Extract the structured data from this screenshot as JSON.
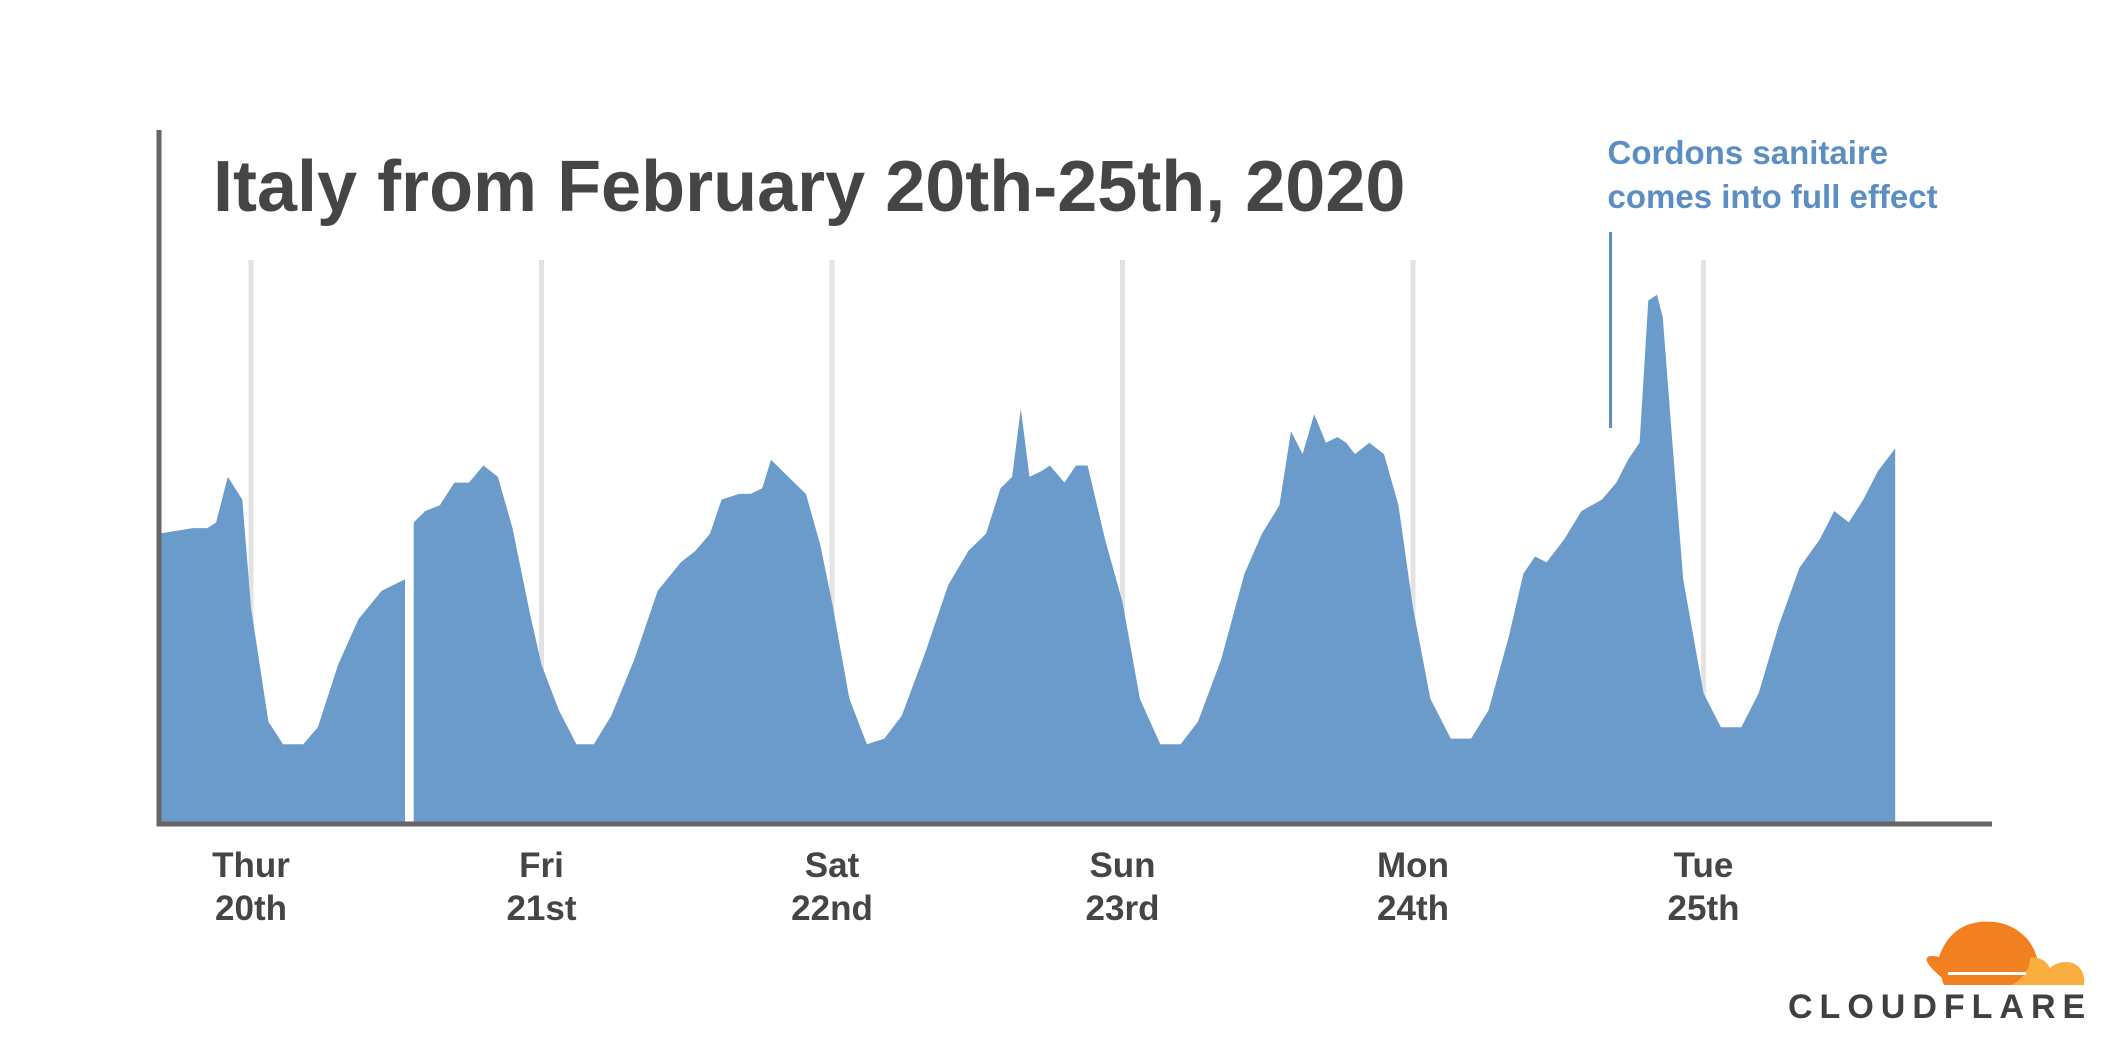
{
  "chart_data": {
    "type": "area",
    "title": "Italy from February 20th-25th, 2020",
    "xlabel": "",
    "ylabel": "",
    "x_start": "Thur 20th",
    "categories": [
      {
        "day": "Thur",
        "date": "20th"
      },
      {
        "day": "Fri",
        "date": "21st"
      },
      {
        "day": "Sat",
        "date": "22nd"
      },
      {
        "day": "Sun",
        "date": "23rd"
      },
      {
        "day": "Mon",
        "date": "24th"
      },
      {
        "day": "Tue",
        "date": "25th"
      }
    ],
    "xlim": [
      -0.32,
      5.66
    ],
    "ylim": [
      0,
      100
    ],
    "grid_vertical": true,
    "annotation": {
      "lines": [
        "Cordons sanitaire",
        "comes into full effect"
      ],
      "x": 4.68,
      "color": "#5b8ec2"
    },
    "series": [
      {
        "color": "#6b9bcb",
        "gap": [
          0.53,
          0.56
        ],
        "points": [
          [
            -0.32,
            51
          ],
          [
            -0.2,
            52
          ],
          [
            -0.15,
            52
          ],
          [
            -0.12,
            53
          ],
          [
            -0.08,
            61
          ],
          [
            -0.03,
            57
          ],
          [
            0.0,
            38
          ],
          [
            0.06,
            18
          ],
          [
            0.11,
            14
          ],
          [
            0.18,
            14
          ],
          [
            0.23,
            17
          ],
          [
            0.3,
            28
          ],
          [
            0.37,
            36
          ],
          [
            0.45,
            41
          ],
          [
            0.53,
            43
          ],
          [
            0.56,
            53
          ],
          [
            0.6,
            55
          ],
          [
            0.65,
            56
          ],
          [
            0.7,
            60
          ],
          [
            0.75,
            60
          ],
          [
            0.8,
            63
          ],
          [
            0.85,
            61
          ],
          [
            0.9,
            52
          ],
          [
            0.96,
            37
          ],
          [
            1.0,
            28
          ],
          [
            1.06,
            20
          ],
          [
            1.12,
            14
          ],
          [
            1.18,
            14
          ],
          [
            1.24,
            19
          ],
          [
            1.32,
            29
          ],
          [
            1.4,
            41
          ],
          [
            1.48,
            46
          ],
          [
            1.53,
            48
          ],
          [
            1.58,
            51
          ],
          [
            1.62,
            57
          ],
          [
            1.68,
            58
          ],
          [
            1.72,
            58
          ],
          [
            1.76,
            59
          ],
          [
            1.79,
            64
          ],
          [
            1.83,
            62
          ],
          [
            1.87,
            60
          ],
          [
            1.91,
            58
          ],
          [
            1.96,
            49
          ],
          [
            2.0,
            39
          ],
          [
            2.06,
            22
          ],
          [
            2.12,
            14
          ],
          [
            2.18,
            15
          ],
          [
            2.24,
            19
          ],
          [
            2.32,
            30
          ],
          [
            2.4,
            42
          ],
          [
            2.47,
            48
          ],
          [
            2.53,
            51
          ],
          [
            2.58,
            59
          ],
          [
            2.62,
            61
          ],
          [
            2.65,
            73
          ],
          [
            2.68,
            61
          ],
          [
            2.72,
            62
          ],
          [
            2.75,
            63
          ],
          [
            2.8,
            60
          ],
          [
            2.84,
            63
          ],
          [
            2.88,
            63
          ],
          [
            2.94,
            50
          ],
          [
            3.0,
            39
          ],
          [
            3.06,
            22
          ],
          [
            3.13,
            14
          ],
          [
            3.2,
            14
          ],
          [
            3.26,
            18
          ],
          [
            3.34,
            29
          ],
          [
            3.42,
            44
          ],
          [
            3.48,
            51
          ],
          [
            3.54,
            56
          ],
          [
            3.58,
            69
          ],
          [
            3.62,
            65
          ],
          [
            3.66,
            72
          ],
          [
            3.7,
            67
          ],
          [
            3.74,
            68
          ],
          [
            3.77,
            67
          ],
          [
            3.8,
            65
          ],
          [
            3.85,
            67
          ],
          [
            3.9,
            65
          ],
          [
            3.95,
            56
          ],
          [
            4.0,
            38
          ],
          [
            4.06,
            22
          ],
          [
            4.13,
            15
          ],
          [
            4.2,
            15
          ],
          [
            4.26,
            20
          ],
          [
            4.33,
            33
          ],
          [
            4.38,
            44
          ],
          [
            4.42,
            47
          ],
          [
            4.46,
            46
          ],
          [
            4.52,
            50
          ],
          [
            4.58,
            55
          ],
          [
            4.65,
            57
          ],
          [
            4.7,
            60
          ],
          [
            4.74,
            64
          ],
          [
            4.78,
            67
          ],
          [
            4.81,
            92
          ],
          [
            4.84,
            93
          ],
          [
            4.86,
            89
          ],
          [
            4.89,
            69
          ],
          [
            4.93,
            43
          ],
          [
            5.0,
            23
          ],
          [
            5.06,
            17
          ],
          [
            5.13,
            17
          ],
          [
            5.19,
            23
          ],
          [
            5.26,
            35
          ],
          [
            5.33,
            45
          ],
          [
            5.4,
            50
          ],
          [
            5.45,
            55
          ],
          [
            5.5,
            53
          ],
          [
            5.55,
            57
          ],
          [
            5.6,
            62
          ],
          [
            5.66,
            66
          ]
        ]
      }
    ]
  },
  "brand": {
    "name": "CLOUDFLARE",
    "colors": {
      "cloud_primary": "#f38020",
      "cloud_secondary": "#faae40",
      "text": "#404041"
    }
  }
}
